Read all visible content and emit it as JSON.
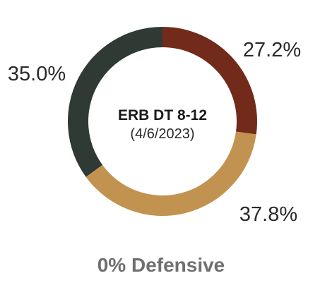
{
  "chart_data": {
    "type": "pie",
    "donut": true,
    "title": "ERB DT 8-12",
    "subtitle": "(4/6/2023)",
    "footer": "0% Defensive",
    "legend": "none",
    "slices": [
      {
        "label": "27.2%",
        "value": 27.2,
        "color": "#722a1a"
      },
      {
        "label": "37.8%",
        "value": 37.8,
        "color": "#c29350"
      },
      {
        "label": "35.0%",
        "value": 35.0,
        "color": "#2e3a33"
      }
    ]
  }
}
